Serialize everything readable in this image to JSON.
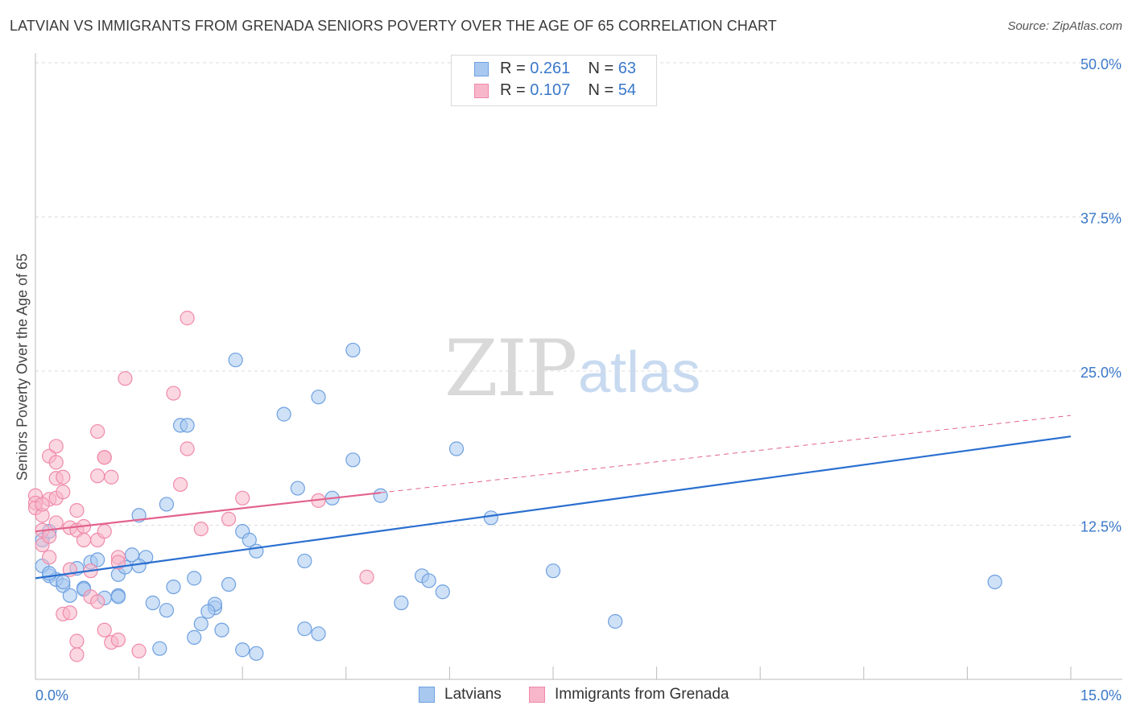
{
  "header": {
    "title": "LATVIAN VS IMMIGRANTS FROM GRENADA SENIORS POVERTY OVER THE AGE OF 65 CORRELATION CHART",
    "source": "Source: ZipAtlas.com"
  },
  "watermark": {
    "zip": "ZIP",
    "atlas": "atlas"
  },
  "stats": {
    "rows": [
      {
        "r_label": "R = ",
        "r_value": "0.261",
        "n_label": "N = ",
        "n_value": "63",
        "color": "#a8c8f0"
      },
      {
        "r_label": "R = ",
        "r_value": "0.107",
        "n_label": "N = ",
        "n_value": "54",
        "color": "#f7b6c9"
      }
    ]
  },
  "legend": {
    "items": [
      {
        "label": "Latvians",
        "color": "#a8c8f0"
      },
      {
        "label": "Immigrants from Grenada",
        "color": "#f7b6c9"
      }
    ]
  },
  "chart_data": {
    "type": "scatter",
    "title": "LATVIAN VS IMMIGRANTS FROM GRENADA SENIORS POVERTY OVER THE AGE OF 65 CORRELATION CHART",
    "xlabel": "",
    "ylabel": "Seniors Poverty Over the Age of 65",
    "xlim": [
      0,
      15
    ],
    "ylim": [
      0,
      50
    ],
    "x_tick_labels": {
      "min": "0.0%",
      "max": "15.0%"
    },
    "y_ticks": [
      12.5,
      25.0,
      37.5,
      50.0
    ],
    "y_tick_labels": [
      "12.5%",
      "25.0%",
      "37.5%",
      "50.0%"
    ],
    "grid": true,
    "series": [
      {
        "name": "Latvians",
        "color": "#6ea0e0",
        "fill": "#a8c8f0",
        "line_color": "#2a6fd0",
        "trend": {
          "x": [
            0,
            15
          ],
          "y": [
            8.2,
            19.7
          ],
          "dashed_after": null
        },
        "points": [
          [
            0.1,
            11.3
          ],
          [
            0.1,
            9.2
          ],
          [
            0.2,
            8.4
          ],
          [
            0.2,
            12.0
          ],
          [
            0.3,
            8.1
          ],
          [
            0.4,
            7.6
          ],
          [
            0.4,
            7.9
          ],
          [
            0.5,
            6.8
          ],
          [
            0.6,
            9.0
          ],
          [
            0.7,
            7.4
          ],
          [
            0.8,
            9.5
          ],
          [
            0.9,
            9.7
          ],
          [
            1.0,
            6.6
          ],
          [
            1.2,
            6.8
          ],
          [
            1.2,
            8.5
          ],
          [
            1.3,
            9.1
          ],
          [
            1.4,
            10.1
          ],
          [
            1.5,
            13.3
          ],
          [
            1.6,
            9.9
          ],
          [
            1.7,
            6.2
          ],
          [
            1.8,
            2.5
          ],
          [
            1.9,
            14.2
          ],
          [
            1.9,
            5.6
          ],
          [
            2.0,
            7.5
          ],
          [
            2.1,
            20.6
          ],
          [
            2.2,
            20.6
          ],
          [
            2.3,
            3.4
          ],
          [
            2.3,
            8.2
          ],
          [
            2.4,
            4.5
          ],
          [
            2.6,
            5.8
          ],
          [
            2.6,
            6.1
          ],
          [
            2.7,
            4.0
          ],
          [
            2.8,
            7.7
          ],
          [
            2.9,
            25.9
          ],
          [
            3.0,
            12.0
          ],
          [
            3.0,
            2.4
          ],
          [
            3.1,
            11.3
          ],
          [
            3.2,
            10.4
          ],
          [
            3.2,
            2.1
          ],
          [
            3.6,
            21.5
          ],
          [
            3.8,
            15.5
          ],
          [
            3.9,
            9.6
          ],
          [
            3.9,
            4.1
          ],
          [
            4.1,
            3.7
          ],
          [
            4.1,
            22.9
          ],
          [
            4.3,
            14.7
          ],
          [
            4.6,
            26.7
          ],
          [
            4.6,
            17.8
          ],
          [
            5.0,
            14.9
          ],
          [
            5.3,
            6.2
          ],
          [
            5.6,
            8.4
          ],
          [
            5.7,
            8.0
          ],
          [
            5.9,
            7.1
          ],
          [
            6.1,
            18.7
          ],
          [
            6.6,
            13.1
          ],
          [
            7.5,
            8.8
          ],
          [
            8.4,
            4.7
          ],
          [
            13.9,
            7.9
          ],
          [
            0.2,
            8.6
          ],
          [
            1.2,
            6.7
          ],
          [
            2.5,
            5.5
          ],
          [
            1.5,
            9.2
          ],
          [
            0.7,
            7.3
          ]
        ]
      },
      {
        "name": "Immigrants from Grenada",
        "color": "#f08aaa",
        "fill": "#f7b6c9",
        "line_color": "#e2628d",
        "trend": {
          "x": [
            0,
            15
          ],
          "y": [
            12.0,
            21.4
          ],
          "dashed_after": 5.0
        },
        "points": [
          [
            0.0,
            14.9
          ],
          [
            0.0,
            14.3
          ],
          [
            0.0,
            13.9
          ],
          [
            0.1,
            13.3
          ],
          [
            0.1,
            10.9
          ],
          [
            0.1,
            12.1
          ],
          [
            0.2,
            11.6
          ],
          [
            0.2,
            9.9
          ],
          [
            0.2,
            14.6
          ],
          [
            0.2,
            18.1
          ],
          [
            0.3,
            17.6
          ],
          [
            0.3,
            16.3
          ],
          [
            0.3,
            14.7
          ],
          [
            0.3,
            18.9
          ],
          [
            0.4,
            5.3
          ],
          [
            0.4,
            15.2
          ],
          [
            0.4,
            16.4
          ],
          [
            0.5,
            5.4
          ],
          [
            0.5,
            12.3
          ],
          [
            0.5,
            8.9
          ],
          [
            0.6,
            2.0
          ],
          [
            0.6,
            3.1
          ],
          [
            0.6,
            12.1
          ],
          [
            0.6,
            13.7
          ],
          [
            0.7,
            12.4
          ],
          [
            0.7,
            11.3
          ],
          [
            0.8,
            8.8
          ],
          [
            0.8,
            6.7
          ],
          [
            0.9,
            6.3
          ],
          [
            0.9,
            20.1
          ],
          [
            0.9,
            16.5
          ],
          [
            0.9,
            11.3
          ],
          [
            1.0,
            18.0
          ],
          [
            1.0,
            18.0
          ],
          [
            1.0,
            4.0
          ],
          [
            1.1,
            3.0
          ],
          [
            1.1,
            16.4
          ],
          [
            1.2,
            9.9
          ],
          [
            1.2,
            3.2
          ],
          [
            1.2,
            9.5
          ],
          [
            1.3,
            24.4
          ],
          [
            1.5,
            2.3
          ],
          [
            2.0,
            23.2
          ],
          [
            2.1,
            15.8
          ],
          [
            2.2,
            18.7
          ],
          [
            2.2,
            29.3
          ],
          [
            2.4,
            12.2
          ],
          [
            2.8,
            13.0
          ],
          [
            3.0,
            14.7
          ],
          [
            4.1,
            14.5
          ],
          [
            4.8,
            8.3
          ],
          [
            0.1,
            14.2
          ],
          [
            0.3,
            12.7
          ],
          [
            1.0,
            12.0
          ]
        ]
      }
    ]
  }
}
